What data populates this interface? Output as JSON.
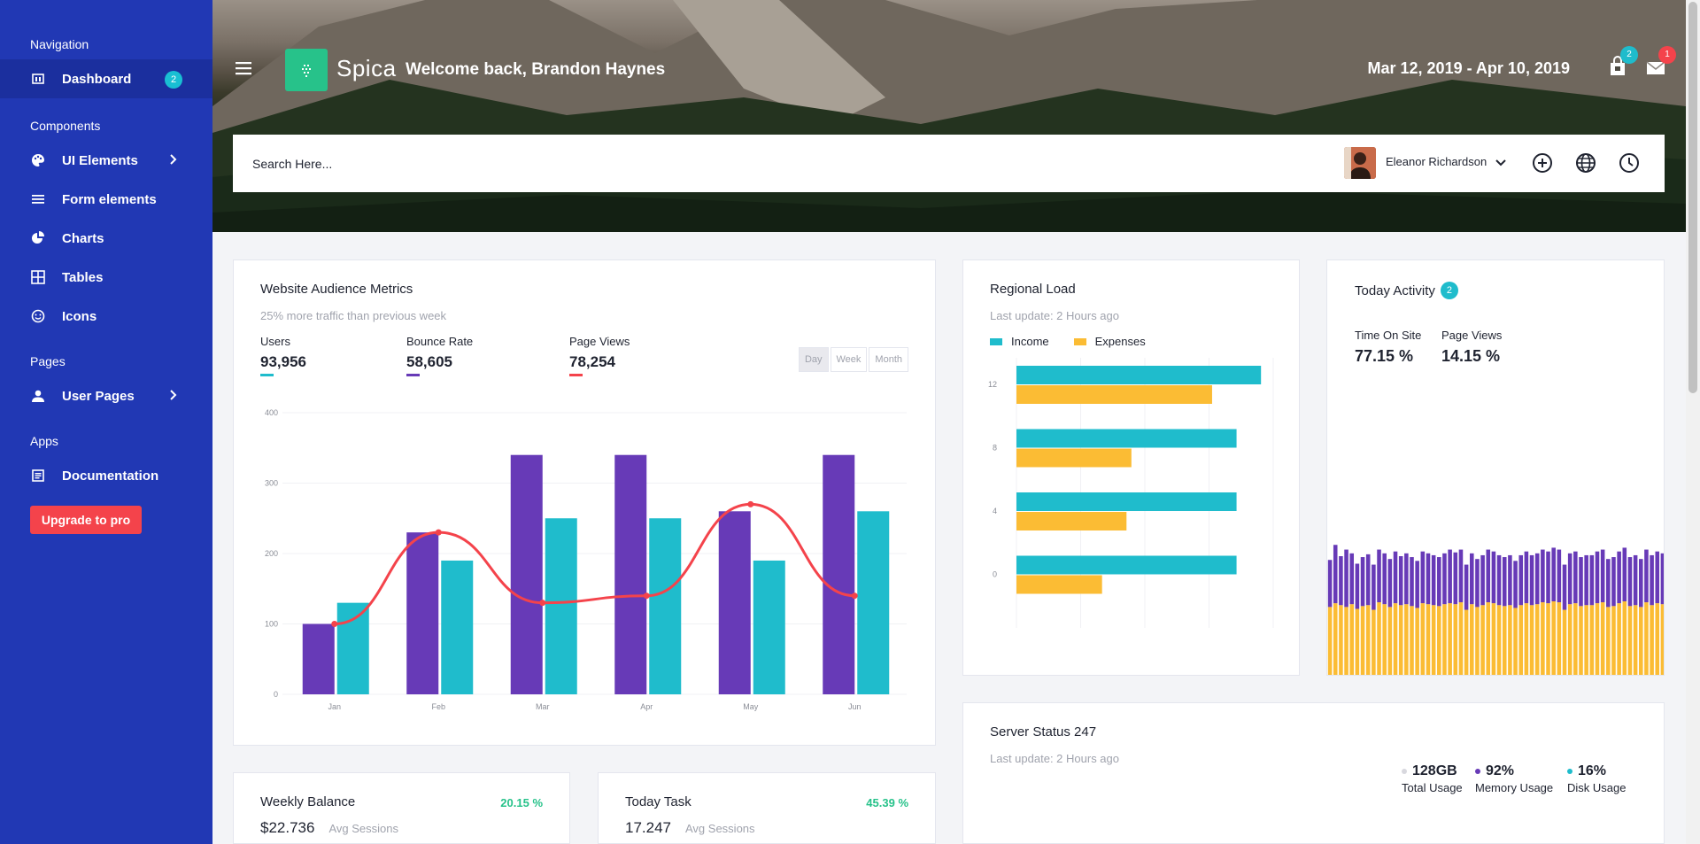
{
  "colors": {
    "purple": "#673ab7",
    "teal": "#1fbccc",
    "red": "#f4434b",
    "yellow": "#fbbc34",
    "green": "#27c28a"
  },
  "sidebar": {
    "groups": [
      "Navigation",
      "Components",
      "Pages",
      "Apps"
    ],
    "items": [
      {
        "label": "Dashboard",
        "icon": "dashboard-icon",
        "badge": "2"
      },
      {
        "label": "UI Elements",
        "icon": "palette-icon"
      },
      {
        "label": "Form elements",
        "icon": "list-icon"
      },
      {
        "label": "Charts",
        "icon": "chart-pie-icon"
      },
      {
        "label": "Tables",
        "icon": "table-icon"
      },
      {
        "label": "Icons",
        "icon": "smiley-icon"
      },
      {
        "label": "User Pages",
        "icon": "user-icon"
      },
      {
        "label": "Documentation",
        "icon": "document-icon"
      }
    ],
    "upgrade_label": "Upgrade to pro"
  },
  "header": {
    "brand": "Spica",
    "welcome": "Welcome back, Brandon Haynes",
    "date_range": "Mar 12, 2019 - Apr 10, 2019",
    "bag_badge": "2",
    "mail_badge": "1"
  },
  "search": {
    "placeholder": "Search Here..."
  },
  "user": {
    "name": "Eleanor Richardson"
  },
  "audience": {
    "title": "Website Audience Metrics",
    "subtitle": "25% more traffic than previous week",
    "metrics": [
      {
        "label": "Users",
        "value": "93,956"
      },
      {
        "label": "Bounce Rate",
        "value": "58,605"
      },
      {
        "label": "Page Views",
        "value": "78,254"
      }
    ],
    "ranges": [
      "Day",
      "Week",
      "Month"
    ],
    "selected_range": "Day"
  },
  "regional": {
    "title": "Regional Load",
    "subtitle": "Last update: 2 Hours ago",
    "legend": [
      "Income",
      "Expenses"
    ]
  },
  "activity": {
    "title": "Today Activity",
    "badge": "2",
    "metrics": [
      {
        "label": "Time On Site",
        "value": "77.15 %"
      },
      {
        "label": "Page Views",
        "value": "14.15 %"
      }
    ]
  },
  "server": {
    "title": "Server Status 247",
    "subtitle": "Last update: 2 Hours ago",
    "stats": [
      {
        "value": "128GB",
        "label": "Total Usage"
      },
      {
        "value": "92%",
        "label": "Memory Usage"
      },
      {
        "value": "16%",
        "label": "Disk Usage"
      }
    ]
  },
  "weekly": {
    "title": "Weekly Balance",
    "percent": "20.15 %",
    "value": "$22.736",
    "label": "Avg Sessions"
  },
  "task": {
    "title": "Today Task",
    "percent": "45.39 %",
    "value": "17.247",
    "label": "Avg Sessions"
  },
  "chart_data": [
    {
      "type": "bar",
      "categories": [
        "Jan",
        "Feb",
        "Mar",
        "Apr",
        "May",
        "Jun"
      ],
      "series": [
        {
          "values": [
            100,
            230,
            340,
            340,
            260,
            340
          ]
        },
        {
          "values": [
            130,
            190,
            250,
            250,
            190,
            260
          ]
        },
        {
          "values": [
            100,
            230,
            130,
            140,
            270,
            140
          ]
        }
      ],
      "yticks": [
        0,
        100,
        200,
        300,
        400
      ],
      "ylim": [
        0,
        400
      ]
    },
    {
      "type": "bar",
      "orientation": "horizontal",
      "categories": [
        "12",
        "8",
        "4",
        "0"
      ],
      "series": [
        {
          "name": "Income",
          "values": [
            10,
            9,
            9,
            9
          ]
        },
        {
          "name": "Expenses",
          "values": [
            8,
            4.7,
            4.5,
            3.5
          ]
        }
      ],
      "xlim": [
        0,
        10.5
      ]
    },
    {
      "type": "bar",
      "stacked": true,
      "series": [
        {
          "values": [
            50,
            62,
            52,
            61,
            54,
            48,
            52,
            54,
            48,
            56,
            54,
            51,
            55,
            52,
            54,
            52,
            50,
            55,
            54,
            53,
            52,
            54,
            57,
            55,
            56,
            48,
            54,
            51,
            53,
            56,
            55,
            53,
            52,
            53,
            50,
            53,
            55,
            53,
            54,
            56,
            55,
            57,
            56,
            48,
            54,
            55,
            52,
            53,
            53,
            55,
            56,
            51,
            52,
            55,
            57,
            52,
            53,
            51,
            56,
            53,
            55,
            54
          ]
        },
        {
          "values": [
            74,
            78,
            76,
            74,
            77,
            72,
            75,
            76,
            71,
            79,
            77,
            74,
            78,
            76,
            77,
            75,
            73,
            78,
            77,
            76,
            75,
            77,
            78,
            77,
            79,
            71,
            77,
            74,
            76,
            79,
            78,
            76,
            75,
            76,
            73,
            76,
            78,
            76,
            77,
            79,
            78,
            80,
            79,
            71,
            77,
            78,
            75,
            76,
            76,
            78,
            79,
            74,
            75,
            78,
            80,
            75,
            76,
            74,
            79,
            76,
            78,
            77
          ]
        }
      ],
      "ylim": [
        0,
        160
      ]
    }
  ]
}
